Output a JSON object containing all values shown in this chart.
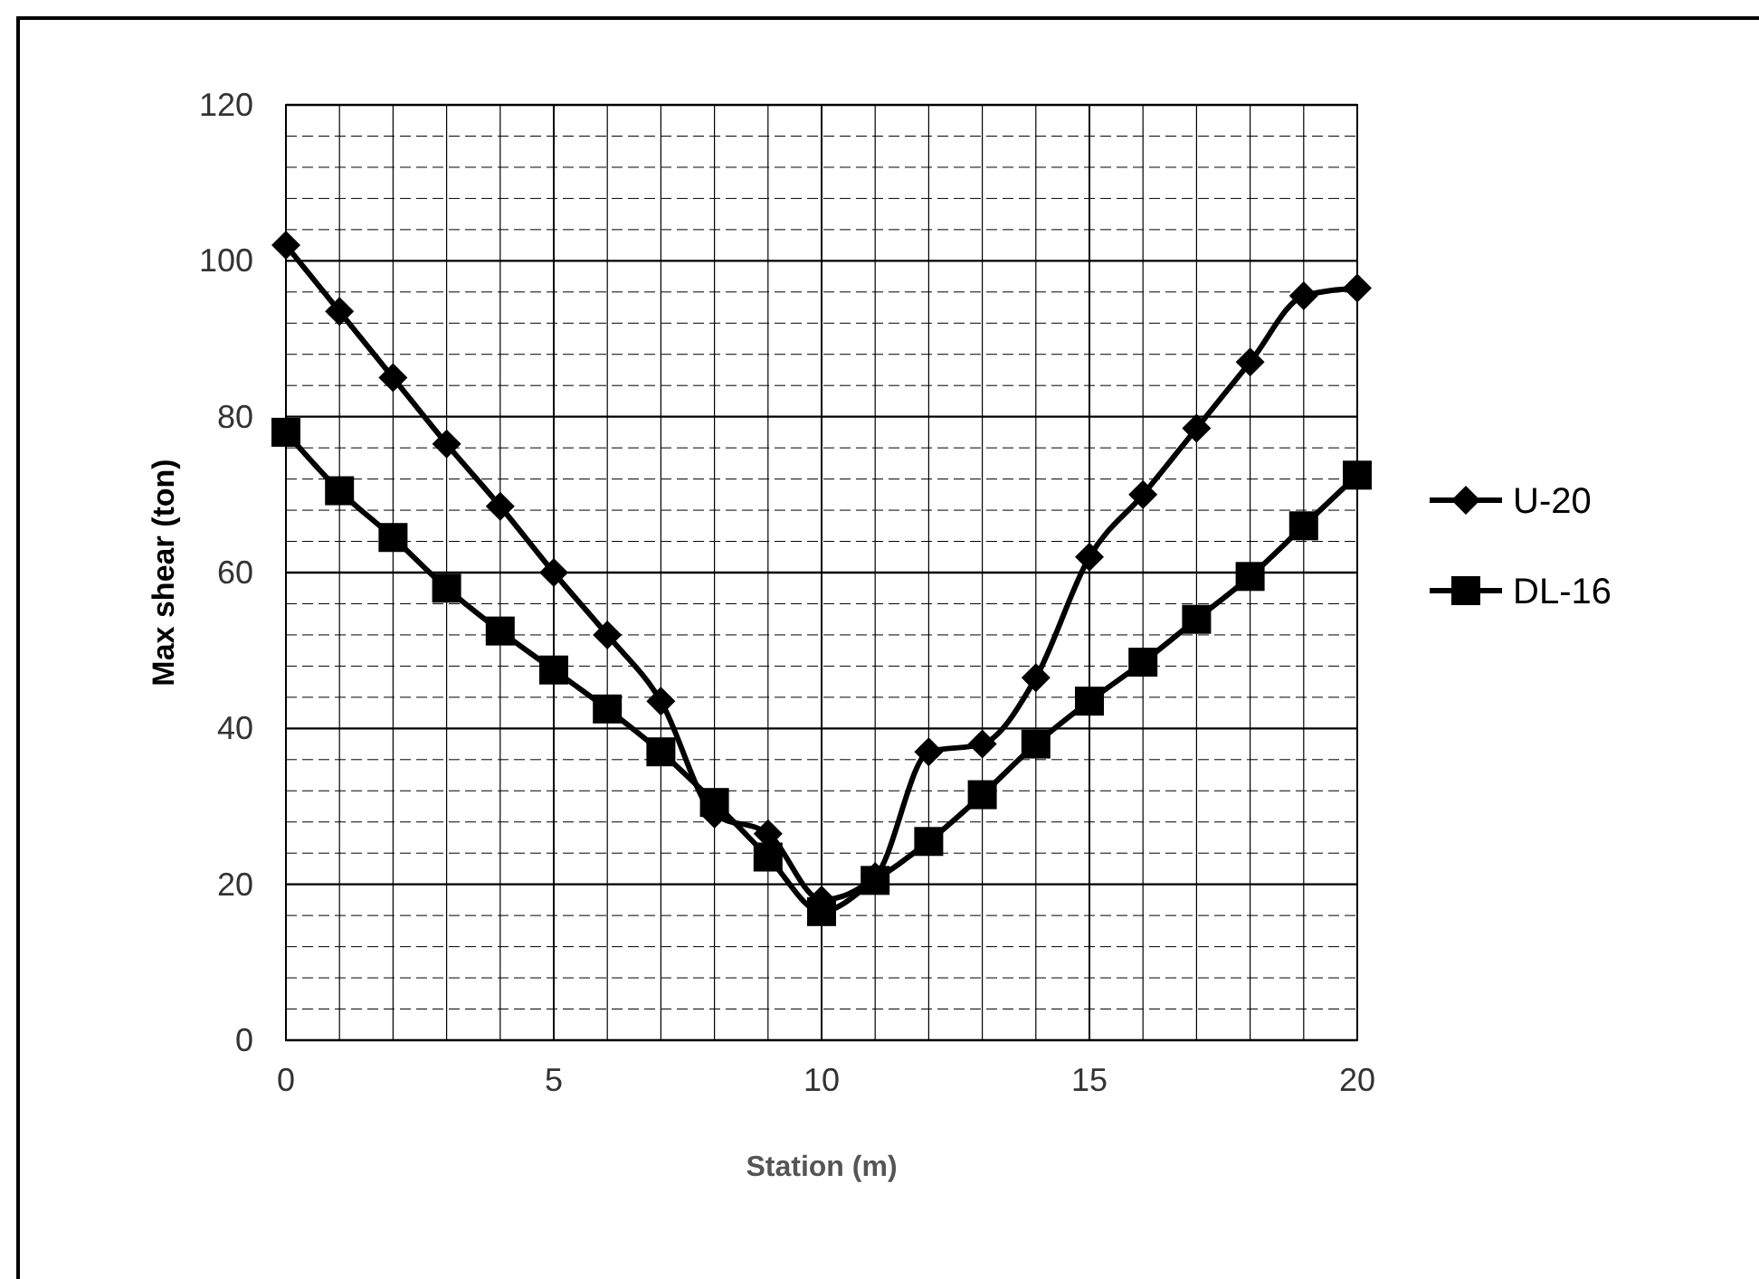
{
  "chart_data": {
    "type": "line",
    "xlabel": "Station (m)",
    "ylabel": "Max shear (ton)",
    "x": [
      0,
      1,
      2,
      3,
      4,
      5,
      6,
      7,
      8,
      9,
      10,
      11,
      12,
      13,
      14,
      15,
      16,
      17,
      18,
      19,
      20
    ],
    "series": [
      {
        "name": "U-20",
        "color": "#000000",
        "marker": "diamond",
        "values": [
          102,
          93.5,
          85,
          76.5,
          68.5,
          60,
          52,
          43.5,
          29,
          26.5,
          18,
          21,
          37,
          38,
          46.5,
          62,
          70,
          78.5,
          87,
          95.5,
          96.5
        ]
      },
      {
        "name": "DL-16",
        "color": "#000000",
        "marker": "square",
        "values": [
          78,
          70.5,
          64.5,
          58,
          52.5,
          47.5,
          42.5,
          37,
          30.5,
          23.5,
          16.5,
          20.5,
          25.5,
          31.5,
          38,
          43.5,
          48.5,
          54,
          59.5,
          66,
          72.5
        ]
      }
    ],
    "xlim": [
      0,
      20
    ],
    "ylim": [
      0,
      120
    ],
    "xticks": [
      0,
      {
        "value": 1,
        "label": null
      },
      {
        "value": 2,
        "label": null
      },
      {
        "value": 3,
        "label": null
      },
      {
        "value": 4,
        "label": null
      },
      5,
      {
        "value": 6,
        "label": null
      },
      {
        "value": 7,
        "label": null
      },
      {
        "value": 8,
        "label": null
      },
      {
        "value": 9,
        "label": null
      },
      10,
      {
        "value": 11,
        "label": null
      },
      {
        "value": 12,
        "label": null
      },
      {
        "value": 13,
        "label": null
      },
      {
        "value": 14,
        "label": null
      },
      15,
      {
        "value": 16,
        "label": null
      },
      {
        "value": 17,
        "label": null
      },
      {
        "value": 18,
        "label": null
      },
      {
        "value": 19,
        "label": null
      },
      20
    ],
    "yticks": [
      0,
      {
        "value": 4,
        "label": null
      },
      {
        "value": 8,
        "label": null
      },
      {
        "value": 12,
        "label": null
      },
      {
        "value": 16,
        "label": null
      },
      20,
      {
        "value": 24,
        "label": null
      },
      {
        "value": 28,
        "label": null
      },
      {
        "value": 32,
        "label": null
      },
      {
        "value": 36,
        "label": null
      },
      40,
      {
        "value": 44,
        "label": null
      },
      {
        "value": 48,
        "label": null
      },
      {
        "value": 52,
        "label": null
      },
      {
        "value": 56,
        "label": null
      },
      60,
      {
        "value": 64,
        "label": null
      },
      {
        "value": 68,
        "label": null
      },
      {
        "value": 72,
        "label": null
      },
      {
        "value": 76,
        "label": null
      },
      80,
      {
        "value": 84,
        "label": null
      },
      {
        "value": 88,
        "label": null
      },
      {
        "value": 92,
        "label": null
      },
      {
        "value": 96,
        "label": null
      },
      100,
      {
        "value": 104,
        "label": null
      },
      {
        "value": 108,
        "label": null
      },
      {
        "value": 112,
        "label": null
      },
      {
        "value": 116,
        "label": null
      },
      120
    ],
    "grid": true,
    "legend": "right",
    "line_style": "solid"
  }
}
